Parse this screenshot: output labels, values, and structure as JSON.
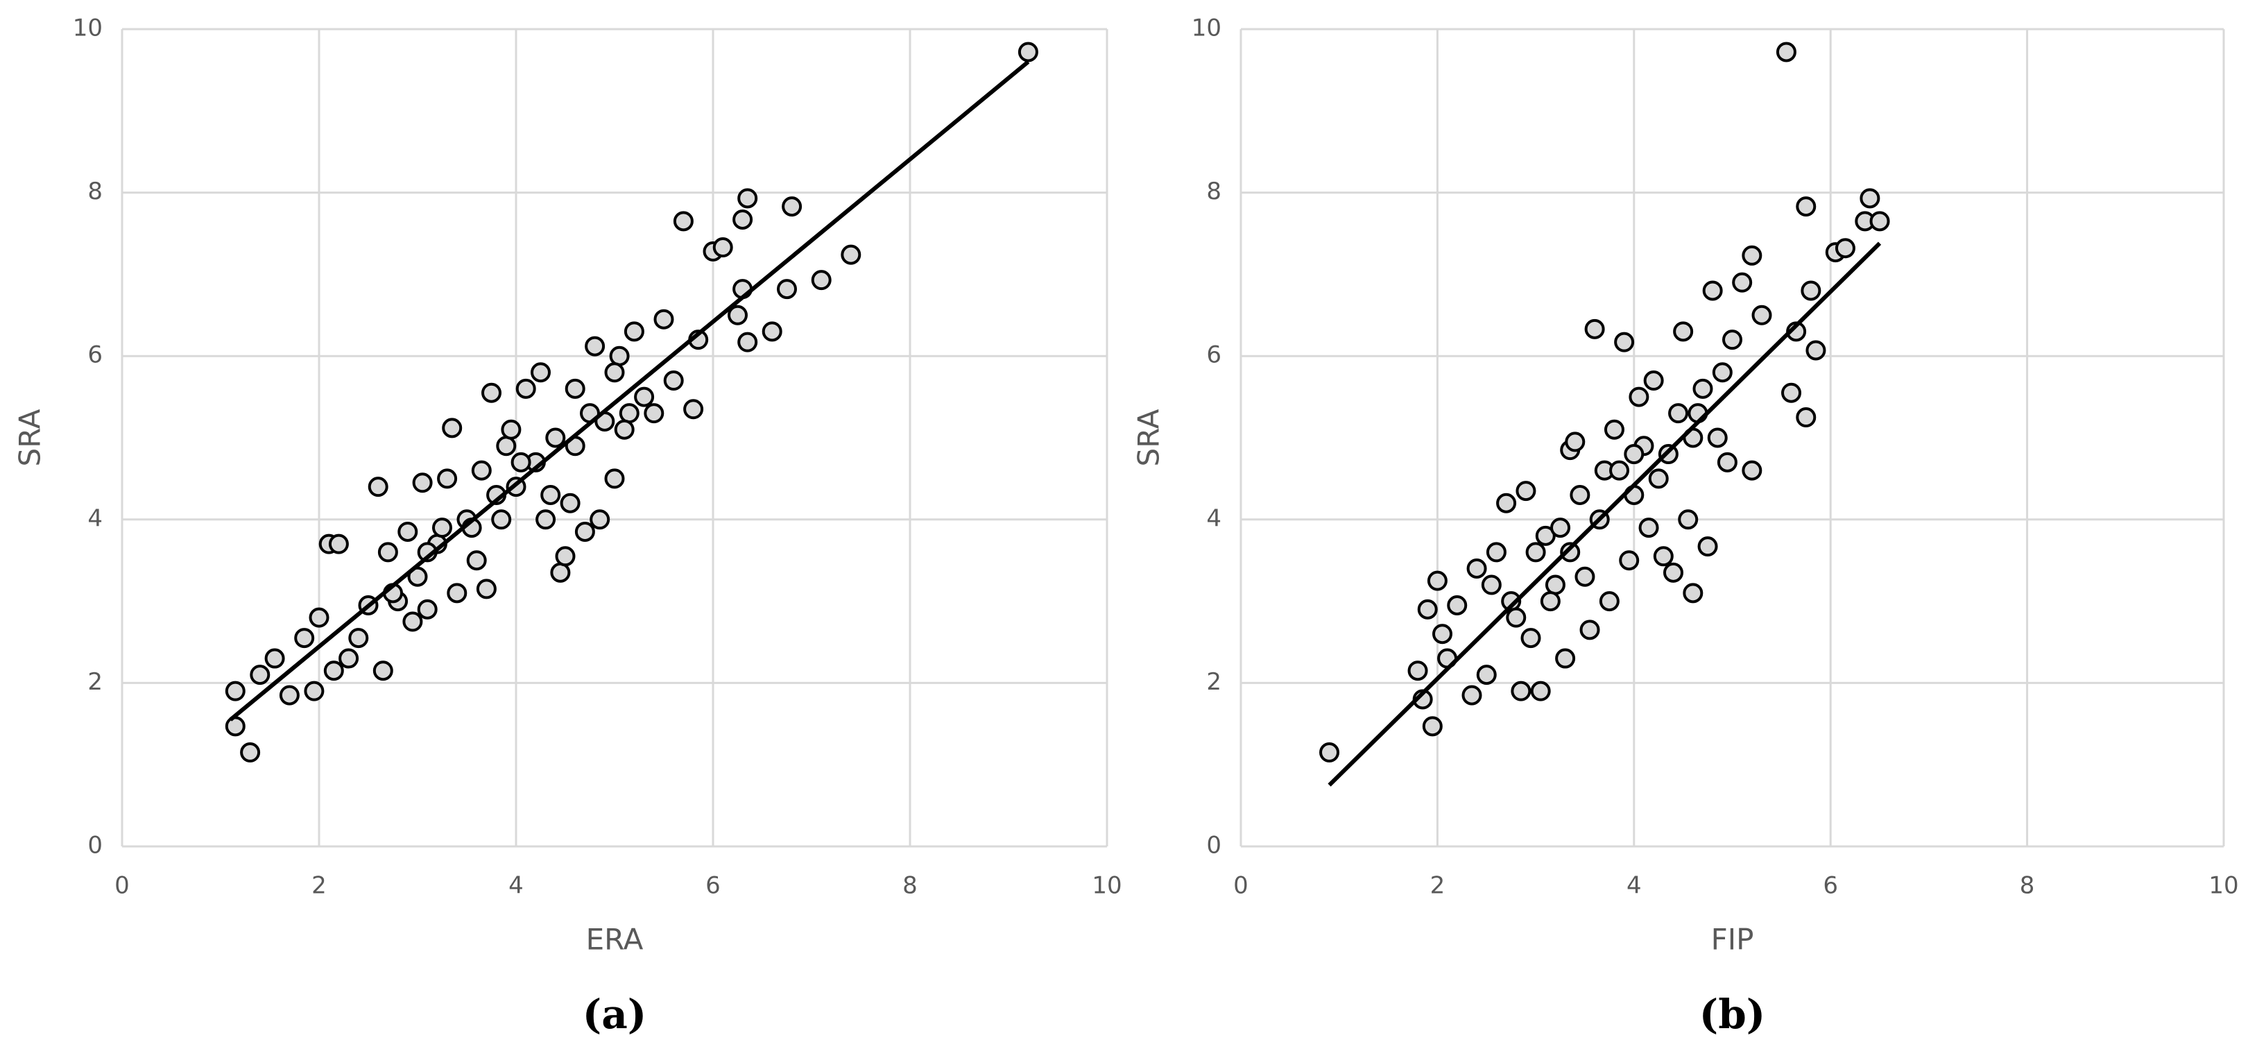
{
  "chart_data": [
    {
      "type": "scatter",
      "caption": "(a)",
      "xlabel": "ERA",
      "ylabel": "SRA",
      "xlim": [
        0,
        10
      ],
      "ylim": [
        0,
        10
      ],
      "xticks": [
        0,
        2,
        4,
        6,
        8,
        10
      ],
      "yticks": [
        0,
        2,
        4,
        6,
        8,
        10
      ],
      "grid": true,
      "color": "#d9d9d9",
      "points": {
        "x": [
          9.2,
          1.15,
          1.3,
          1.15,
          1.4,
          1.55,
          1.7,
          1.85,
          1.95,
          2.0,
          2.1,
          2.2,
          2.15,
          2.3,
          2.4,
          2.5,
          2.6,
          2.65,
          2.7,
          2.8,
          2.9,
          3.0,
          3.05,
          3.1,
          3.2,
          3.3,
          3.35,
          3.4,
          3.5,
          3.6,
          3.7,
          3.75,
          3.8,
          3.9,
          4.0,
          4.1,
          4.2,
          4.25,
          4.3,
          4.4,
          4.45,
          4.5,
          4.55,
          4.6,
          4.7,
          4.8,
          4.85,
          4.9,
          5.0,
          5.05,
          5.15,
          5.2,
          5.3,
          5.4,
          5.5,
          5.6,
          5.7,
          5.8,
          5.85,
          6.0,
          6.1,
          6.25,
          6.3,
          6.3,
          6.35,
          6.35,
          6.6,
          6.75,
          6.8,
          7.1,
          7.4,
          3.1,
          2.95,
          3.55,
          4.05,
          4.6,
          5.0,
          3.65,
          3.25,
          2.75,
          4.75,
          5.1,
          4.35,
          3.85,
          3.95
        ],
        "y": [
          9.72,
          1.47,
          1.15,
          1.9,
          2.1,
          2.3,
          1.85,
          2.55,
          1.9,
          2.8,
          3.7,
          3.7,
          2.15,
          2.3,
          2.55,
          2.95,
          4.4,
          2.15,
          3.6,
          3.0,
          3.85,
          3.3,
          4.45,
          2.9,
          3.7,
          4.5,
          5.12,
          3.1,
          4.0,
          3.5,
          3.15,
          5.55,
          4.3,
          4.9,
          4.4,
          5.6,
          4.7,
          5.8,
          4.0,
          5.0,
          3.35,
          3.55,
          4.2,
          5.6,
          3.85,
          6.12,
          4.0,
          5.2,
          4.5,
          6.0,
          5.3,
          6.3,
          5.5,
          5.3,
          6.45,
          5.7,
          7.65,
          5.35,
          6.2,
          7.28,
          7.33,
          6.5,
          7.67,
          6.82,
          7.93,
          6.17,
          6.3,
          6.82,
          7.83,
          6.93,
          7.24,
          3.6,
          2.75,
          3.9,
          4.7,
          4.9,
          5.8,
          4.6,
          3.9,
          3.1,
          5.3,
          5.1,
          4.3,
          4.0,
          5.1
        ]
      },
      "trendline": {
        "x": [
          1.1,
          9.2
        ],
        "y": [
          1.55,
          9.6
        ]
      }
    },
    {
      "type": "scatter",
      "caption": "(b)",
      "xlabel": "FIP",
      "ylabel": "SRA",
      "xlim": [
        0,
        10
      ],
      "ylim": [
        0,
        10
      ],
      "xticks": [
        0,
        2,
        4,
        6,
        8,
        10
      ],
      "yticks": [
        0,
        2,
        4,
        6,
        8,
        10
      ],
      "grid": true,
      "color": "#d9d9d9",
      "points": {
        "x": [
          0.9,
          1.8,
          1.85,
          1.95,
          1.9,
          2.0,
          2.05,
          2.1,
          2.2,
          2.35,
          2.4,
          2.5,
          2.6,
          2.7,
          2.75,
          2.85,
          2.9,
          2.95,
          3.05,
          3.1,
          3.2,
          3.3,
          3.35,
          3.4,
          3.5,
          3.55,
          3.6,
          3.7,
          3.75,
          3.8,
          3.9,
          4.0,
          4.05,
          4.15,
          4.2,
          4.3,
          4.35,
          4.4,
          4.5,
          4.55,
          4.6,
          4.65,
          4.75,
          4.8,
          4.85,
          4.95,
          5.0,
          5.1,
          5.2,
          5.2,
          5.3,
          5.55,
          5.6,
          5.65,
          5.75,
          5.75,
          5.8,
          5.85,
          6.05,
          6.15,
          6.35,
          6.4,
          6.5,
          3.0,
          3.25,
          3.45,
          3.65,
          3.85,
          4.1,
          4.25,
          4.45,
          4.7,
          2.8,
          3.15,
          3.95,
          4.9,
          2.55,
          3.35,
          4.0,
          4.6
        ],
        "y": [
          1.15,
          2.15,
          1.8,
          1.47,
          2.9,
          3.25,
          2.6,
          2.3,
          2.95,
          1.85,
          3.4,
          2.1,
          3.6,
          4.2,
          3.0,
          1.9,
          4.35,
          2.55,
          1.9,
          3.8,
          3.2,
          2.3,
          4.85,
          4.95,
          3.3,
          2.65,
          6.33,
          4.6,
          3.0,
          5.1,
          6.17,
          4.3,
          5.5,
          3.9,
          5.7,
          3.55,
          4.8,
          3.35,
          6.3,
          4.0,
          3.1,
          5.3,
          3.67,
          6.8,
          5.0,
          4.7,
          6.2,
          6.9,
          7.23,
          4.6,
          6.5,
          9.72,
          5.55,
          6.3,
          7.83,
          5.25,
          6.8,
          6.07,
          7.27,
          7.32,
          7.65,
          7.93,
          7.65,
          3.6,
          3.9,
          4.3,
          4.0,
          4.6,
          4.9,
          4.5,
          5.3,
          5.6,
          2.8,
          3.0,
          3.5,
          5.8,
          3.2,
          3.6,
          4.8,
          5.0
        ]
      },
      "trendline": {
        "x": [
          0.9,
          6.5
        ],
        "y": [
          0.75,
          7.38
        ]
      }
    }
  ]
}
